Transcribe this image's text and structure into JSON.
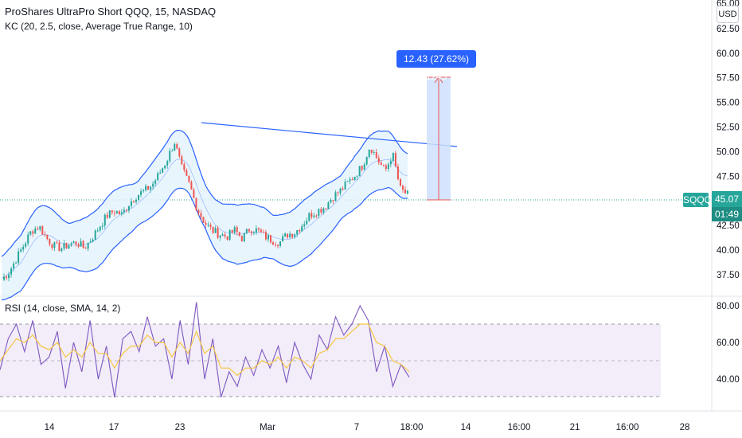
{
  "header": {
    "title": "ProShares UltraPro Short QQQ, 15, NASDAQ",
    "kc_legend": "KC (20, 2.5, close, Average True Range, 10)",
    "rsi_legend": "RSI (14, close, SMA, 14, 2)"
  },
  "price_axis": {
    "currency": "USD",
    "top_partial_label": "65.00",
    "ticks": [
      "62.50",
      "60.00",
      "57.50",
      "55.00",
      "52.50",
      "50.00",
      "47.50",
      "45.00",
      "42.50",
      "40.00",
      "37.50"
    ]
  },
  "rsi_axis": {
    "ticks": [
      "80.00",
      "60.00",
      "40.00"
    ]
  },
  "last_price": {
    "symbol": "SQQQ",
    "value": "45.07",
    "countdown": "01:49"
  },
  "measure": {
    "label": "12.43 (27.62%) 1243",
    "from": 45.07,
    "to": 57.5
  },
  "time_axis": {
    "labels": [
      "14",
      "17",
      "23",
      "Mar",
      "7",
      "18:00",
      "14",
      "16:00",
      "21",
      "16:00",
      "28"
    ]
  },
  "colors": {
    "up": "#26a69a",
    "down": "#ef5350",
    "kc_band": "#2962ff",
    "kc_fill": "#e3f2fd",
    "rsi_line": "#7e57c2",
    "rsi_ma": "#f7c644",
    "rsi_bg": "#ede7f6",
    "trendline": "#2962ff",
    "measure_fill": "#cfe0fd"
  },
  "chart_data": [
    {
      "type": "candlestick",
      "title": "ProShares UltraPro Short QQQ, 15, NASDAQ",
      "ylim": [
        35.5,
        65
      ],
      "x_labels": [
        "14",
        "17",
        "23",
        "Mar",
        "7",
        "18:00"
      ],
      "close_path": [
        [
          0,
          37.0
        ],
        [
          1,
          37.8
        ],
        [
          2,
          39.2
        ],
        [
          3,
          40.6
        ],
        [
          4,
          42.0
        ],
        [
          5,
          42.4
        ],
        [
          6,
          41.2
        ],
        [
          7,
          40.4
        ],
        [
          8,
          40.2
        ],
        [
          9,
          40.6
        ],
        [
          10,
          40.8
        ],
        [
          11,
          40.2
        ],
        [
          12,
          41.2
        ],
        [
          13,
          42.4
        ],
        [
          14,
          43.5
        ],
        [
          15,
          44.0
        ],
        [
          16,
          43.6
        ],
        [
          17,
          44.8
        ],
        [
          18,
          45.6
        ],
        [
          19,
          46.0
        ],
        [
          20,
          46.6
        ],
        [
          21,
          47.8
        ],
        [
          22,
          49.2
        ],
        [
          23,
          51.0
        ],
        [
          24,
          48.2
        ],
        [
          25,
          46.6
        ],
        [
          26,
          44.2
        ],
        [
          27,
          42.8
        ],
        [
          28,
          42.0
        ],
        [
          29,
          41.6
        ],
        [
          30,
          41.4
        ],
        [
          31,
          42.0
        ],
        [
          32,
          41.2
        ],
        [
          33,
          42.2
        ],
        [
          34,
          42.0
        ],
        [
          35,
          41.4
        ],
        [
          36,
          41.0
        ],
        [
          37,
          40.8
        ],
        [
          38,
          41.6
        ],
        [
          39,
          41.8
        ],
        [
          40,
          42.6
        ],
        [
          41,
          43.6
        ],
        [
          42,
          44.0
        ],
        [
          43,
          44.4
        ],
        [
          44,
          45.4
        ],
        [
          45,
          46.0
        ],
        [
          46,
          46.8
        ],
        [
          47,
          47.6
        ],
        [
          48,
          48.6
        ],
        [
          49,
          50.6
        ],
        [
          50,
          49.2
        ],
        [
          51,
          48.0
        ],
        [
          52,
          49.8
        ],
        [
          53,
          46.2
        ],
        [
          54,
          45.6
        ]
      ],
      "keltner": {
        "length": 20,
        "multiplier": 2.5
      },
      "trendline": {
        "start": 51.0,
        "end": 50.4
      },
      "last": 45.07
    },
    {
      "type": "line",
      "title": "RSI (14, close, SMA, 14, 2)",
      "ylim": [
        25,
        85
      ],
      "levels": [
        70,
        50,
        30
      ],
      "series": [
        {
          "values": [
            45,
            62,
            70,
            55,
            72,
            48,
            52,
            66,
            35,
            60,
            44,
            72,
            40,
            58,
            30,
            62,
            66,
            55,
            74,
            58,
            62,
            40,
            72,
            48,
            82,
            40,
            62,
            30,
            44,
            36,
            52,
            42,
            56,
            46,
            58,
            38,
            60,
            48,
            40,
            64,
            56,
            74,
            64,
            70,
            80,
            72,
            44,
            58,
            36,
            48,
            41
          ]
        },
        {
          "values": [
            50,
            56,
            62,
            60,
            64,
            58,
            56,
            60,
            52,
            56,
            52,
            60,
            54,
            54,
            46,
            54,
            58,
            58,
            64,
            60,
            60,
            52,
            60,
            54,
            66,
            54,
            58,
            46,
            46,
            42,
            46,
            46,
            50,
            48,
            52,
            46,
            52,
            50,
            46,
            54,
            56,
            62,
            62,
            66,
            70,
            70,
            60,
            58,
            50,
            48,
            44
          ]
        }
      ]
    }
  ]
}
